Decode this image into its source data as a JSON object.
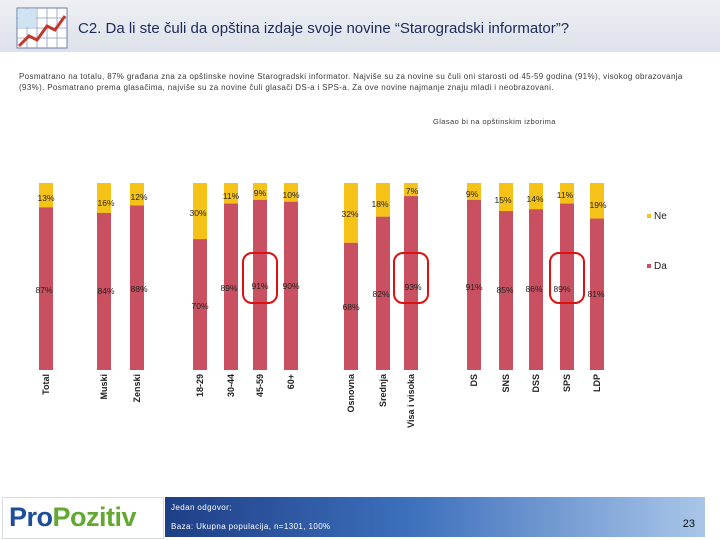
{
  "header": {
    "title": "C2. Da li ste čuli da opština izdaje svoje novine “Starogradski informator”?"
  },
  "description": "Posmatrano na totalu, 87% građana zna za opštinske novine Starogradski informator. Najviše su za novine su čuli oni starosti od 45-59 godina (91%), visokog obrazovanja (93%). Posmatrano  prema glasačima, najviše su za novine čuli glasači DS-a i SPS-a. Za ove novine najmanje znaju mladi i neobrazovani.",
  "subtitle": "Glasao bi na opštinskim izborima",
  "footer": {
    "brand_pro": "Pro",
    "brand_pozitiv": "Pozitiv",
    "note1": "Jedan odgovor;",
    "note2": "Baza: Ukupna populacija, n=1301, 100%",
    "page": "23"
  },
  "colors": {
    "ne": "#f5c218",
    "da": "#c85060",
    "highlight": "#e01010"
  },
  "chart_data": {
    "type": "bar",
    "stacked": true,
    "ylim": [
      0,
      100
    ],
    "categories": [
      "Total",
      "Muski",
      "Zenski",
      "18-29",
      "30-44",
      "45-59",
      "60+",
      "Osnovna",
      "Srednja",
      "Visa i visoka",
      "DS",
      "SNS",
      "DSS",
      "SPS",
      "LDP"
    ],
    "series": [
      {
        "name": "Da",
        "values": [
          87,
          84,
          88,
          70,
          89,
          91,
          90,
          68,
          82,
          93,
          91,
          85,
          86,
          89,
          81
        ],
        "labels": [
          "87%",
          "84%",
          "88%",
          "70%",
          "89%",
          "91%",
          "90%",
          "68%",
          "82%",
          "93%",
          "91%",
          "85%",
          "86%",
          "89%",
          "81%"
        ]
      },
      {
        "name": "Ne",
        "values": [
          13,
          16,
          12,
          30,
          11,
          9,
          10,
          32,
          18,
          7,
          9,
          15,
          14,
          11,
          19
        ],
        "labels": [
          "13%",
          "16%",
          "12%",
          "30%",
          "11%",
          "9%",
          "10%",
          "32%",
          "18%",
          "7%",
          "9%",
          "15%",
          "14%",
          "11%",
          "19%"
        ]
      }
    ],
    "legend": [
      {
        "name": "Ne"
      },
      {
        "name": "Da"
      }
    ],
    "legend_position": "right",
    "highlights": [
      [
        "45-59"
      ],
      [
        "Visa i visoka"
      ],
      [
        "SPS"
      ]
    ]
  }
}
